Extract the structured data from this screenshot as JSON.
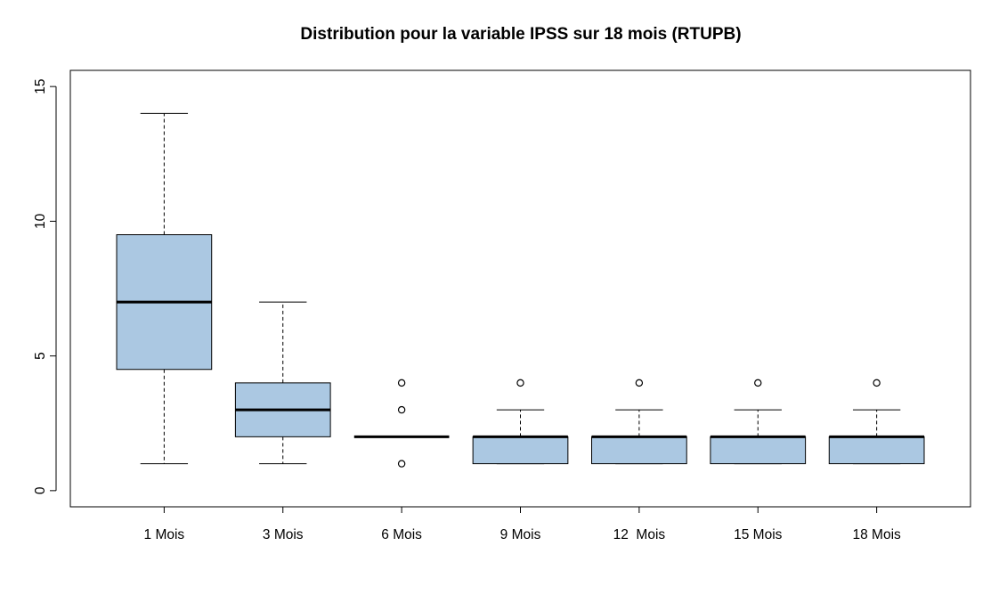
{
  "chart_data": {
    "type": "boxplot",
    "title": "Distribution pour la variable IPSS sur 18 mois (RTUPB)",
    "xlabel": "",
    "ylabel": "",
    "ylim": [
      -0.6,
      15.6
    ],
    "yticks": [
      0,
      5,
      10,
      15
    ],
    "ytick_labels": [
      "0",
      "5",
      "10",
      "15"
    ],
    "categories": [
      "1 Mois",
      "3 Mois",
      "6 Mois",
      "9 Mois",
      "12  Mois",
      "15 Mois",
      "18 Mois"
    ],
    "box_color": "#abc8e2",
    "grid": false,
    "boxes": [
      {
        "label": "1 Mois",
        "whisker_low": 1,
        "q1": 4.5,
        "median": 7,
        "q3": 9.5,
        "whisker_high": 14,
        "outliers": []
      },
      {
        "label": "3 Mois",
        "whisker_low": 1,
        "q1": 2,
        "median": 3,
        "q3": 4,
        "whisker_high": 7,
        "outliers": []
      },
      {
        "label": "6 Mois",
        "whisker_low": 2,
        "q1": 2,
        "median": 2,
        "q3": 2,
        "whisker_high": 2,
        "outliers": [
          1,
          3,
          4
        ]
      },
      {
        "label": "9 Mois",
        "whisker_low": 1,
        "q1": 1,
        "median": 2,
        "q3": 2,
        "whisker_high": 3,
        "outliers": [
          4
        ]
      },
      {
        "label": "12  Mois",
        "whisker_low": 1,
        "q1": 1,
        "median": 2,
        "q3": 2,
        "whisker_high": 3,
        "outliers": [
          4
        ]
      },
      {
        "label": "15 Mois",
        "whisker_low": 1,
        "q1": 1,
        "median": 2,
        "q3": 2,
        "whisker_high": 3,
        "outliers": [
          4
        ]
      },
      {
        "label": "18 Mois",
        "whisker_low": 1,
        "q1": 1,
        "median": 2,
        "q3": 2,
        "whisker_high": 3,
        "outliers": [
          4
        ]
      }
    ]
  }
}
